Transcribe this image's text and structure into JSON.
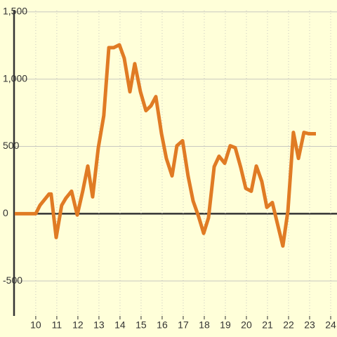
{
  "chart_data": {
    "type": "line",
    "x": [
      9.0,
      10.0,
      10.2,
      10.63,
      10.73,
      10.97,
      11.23,
      11.43,
      11.7,
      11.97,
      12.23,
      12.47,
      12.7,
      12.97,
      13.23,
      13.47,
      13.7,
      13.97,
      14.2,
      14.47,
      14.7,
      14.97,
      15.23,
      15.47,
      15.7,
      15.97,
      16.2,
      16.47,
      16.7,
      16.97,
      17.23,
      17.47,
      17.73,
      17.97,
      18.2,
      18.47,
      18.7,
      18.97,
      19.23,
      19.47,
      19.73,
      19.97,
      20.23,
      20.47,
      20.73,
      20.97,
      21.23,
      21.47,
      21.73,
      21.97,
      22.23,
      22.47,
      22.73,
      22.97,
      23.3
    ],
    "series": [
      {
        "color": "#e07b24",
        "values": [
          0,
          0,
          62,
          146,
          146,
          -177,
          62,
          115,
          167,
          -10,
          167,
          354,
          125,
          490,
          729,
          1234,
          1234,
          1255,
          1156,
          906,
          1115,
          906,
          766,
          802,
          870,
          594,
          411,
          281,
          505,
          542,
          281,
          94,
          -21,
          -146,
          -31,
          349,
          427,
          375,
          505,
          490,
          344,
          188,
          167,
          354,
          240,
          47,
          83,
          -73,
          -240,
          21,
          604,
          411,
          604,
          594,
          594
        ]
      }
    ],
    "xlim": [
      8.97,
      24.3
    ],
    "xticks": [
      10,
      11,
      12,
      13,
      14,
      15,
      16,
      17,
      18,
      19,
      20,
      21,
      22,
      23,
      24
    ],
    "ylim": [
      -760,
      1510
    ],
    "yticks": [
      {
        "value": -500,
        "label": "-500"
      },
      0,
      500,
      {
        "value": 1000,
        "label": "1,000"
      },
      {
        "value": 1500,
        "label": "1,500"
      }
    ],
    "grid": true
  }
}
